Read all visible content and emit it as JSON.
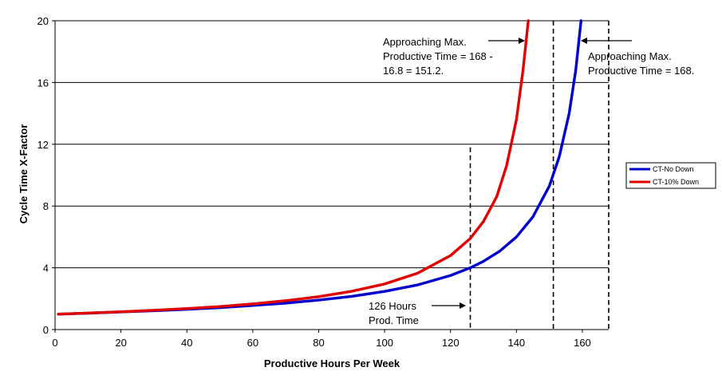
{
  "chart_data": {
    "type": "line",
    "title": "",
    "xlabel": "Productive Hours Per Week",
    "ylabel": "Cycle Time X-Factor",
    "xlim": [
      0,
      168
    ],
    "ylim": [
      0,
      20
    ],
    "xticks": [
      0,
      20,
      40,
      60,
      80,
      100,
      120,
      140,
      160
    ],
    "yticks": [
      0,
      4,
      8,
      12,
      16,
      20
    ],
    "grid": "horizontal",
    "legend_position": "right",
    "series": [
      {
        "name": "CT-No Down",
        "color": "#0000cc",
        "x": [
          1,
          10,
          20,
          30,
          40,
          50,
          60,
          70,
          80,
          90,
          100,
          110,
          120,
          126,
          130,
          135,
          140,
          145,
          150,
          153,
          156,
          158,
          159.6
        ],
        "y": [
          1.0,
          1.06,
          1.14,
          1.22,
          1.31,
          1.42,
          1.56,
          1.71,
          1.91,
          2.15,
          2.47,
          2.89,
          3.5,
          4.0,
          4.42,
          5.09,
          6.0,
          7.3,
          9.3,
          11.2,
          14.0,
          16.8,
          20.0
        ]
      },
      {
        "name": "CT-10% Down",
        "color": "#e00000",
        "x": [
          1,
          10,
          20,
          30,
          40,
          50,
          60,
          70,
          80,
          90,
          100,
          110,
          120,
          126,
          130,
          134,
          137,
          140,
          142,
          143.6
        ],
        "y": [
          1.0,
          1.07,
          1.15,
          1.25,
          1.36,
          1.49,
          1.66,
          1.87,
          2.13,
          2.48,
          2.95,
          3.65,
          4.79,
          5.9,
          7.0,
          8.6,
          10.6,
          13.6,
          16.8,
          20.0
        ]
      }
    ],
    "reference_lines": [
      {
        "x": 126,
        "label": "126 Hours Prod. Time"
      },
      {
        "x": 151.2,
        "label": "Approaching Max. Productive Time = 168 - 16.8 = 151.2."
      },
      {
        "x": 168,
        "label": "Approaching Max. Productive Time = 168."
      }
    ],
    "annotations": {
      "left_top": [
        "Approaching Max.",
        "Productive Time = 168 -",
        "16.8 = 151.2."
      ],
      "right_top": [
        "Approaching Max.",
        "Productive Time = 168."
      ],
      "bottom": [
        "126 Hours",
        "Prod. Time"
      ]
    }
  }
}
